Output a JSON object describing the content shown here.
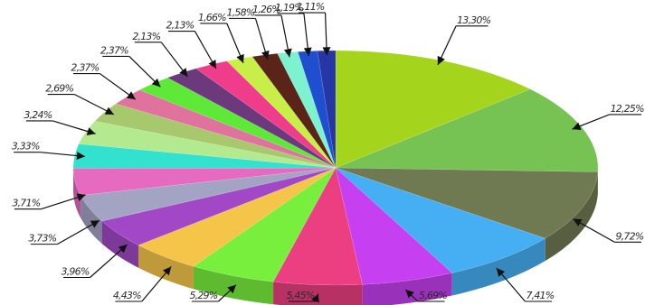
{
  "chart_data": {
    "type": "pie",
    "title": "",
    "style": "3d",
    "legend": "none",
    "slices": [
      {
        "value": 13.3,
        "label": "13,30%",
        "color": "#a4d51c"
      },
      {
        "value": 12.25,
        "label": "12,25%",
        "color": "#76c252"
      },
      {
        "value": 9.72,
        "label": "9,72%",
        "color": "#6f7a52"
      },
      {
        "value": 7.41,
        "label": "7,41%",
        "color": "#46aef2"
      },
      {
        "value": 5.69,
        "label": "5,69%",
        "color": "#c63ff0"
      },
      {
        "value": 5.45,
        "label": "5,45%",
        "color": "#ec3f82"
      },
      {
        "value": 5.29,
        "label": "5,29%",
        "color": "#78ef3c"
      },
      {
        "value": 4.43,
        "label": "4,43%",
        "color": "#f5c54a"
      },
      {
        "value": 3.96,
        "label": "3,96%",
        "color": "#a248c6"
      },
      {
        "value": 3.73,
        "label": "3,73%",
        "color": "#a3a3c4"
      },
      {
        "value": 3.71,
        "label": "3,71%",
        "color": "#e66ac0"
      },
      {
        "value": 3.33,
        "label": "3,33%",
        "color": "#32e2cf"
      },
      {
        "value": 3.24,
        "label": "3,24%",
        "color": "#b4ea8f"
      },
      {
        "value": 2.69,
        "label": "2,69%",
        "color": "#a7c86c"
      },
      {
        "value": 2.37,
        "label": "2,37%",
        "color": "#e0739e"
      },
      {
        "value": 2.37,
        "label": "2,37%",
        "color": "#5ee838"
      },
      {
        "value": 2.13,
        "label": "2,13%",
        "color": "#6c3a7c"
      },
      {
        "value": 2.13,
        "label": "2,13%",
        "color": "#ef3d8c"
      },
      {
        "value": 1.66,
        "label": "1,66%",
        "color": "#c8ef48"
      },
      {
        "value": 1.58,
        "label": "1,58%",
        "color": "#5b2418"
      },
      {
        "value": 1.26,
        "label": "1,26%",
        "color": "#7cf2cf"
      },
      {
        "value": 1.19,
        "label": "1,19%",
        "color": "#1f4fcf"
      },
      {
        "value": 1.11,
        "label": "1,11%",
        "color": "#2636a4"
      }
    ]
  }
}
